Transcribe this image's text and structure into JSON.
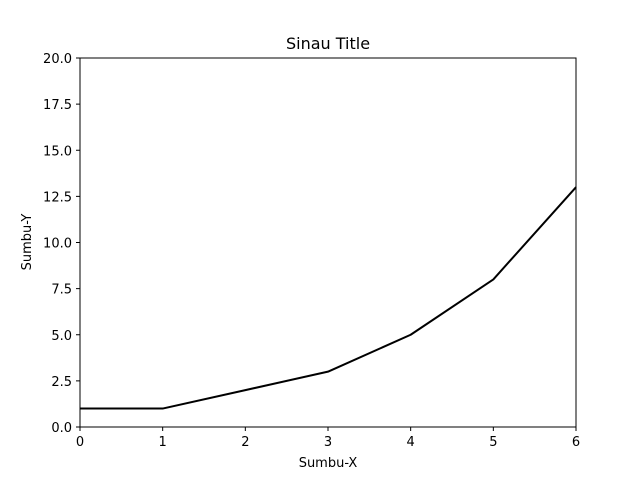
{
  "chart_data": {
    "type": "line",
    "title": "Sinau Title",
    "xlabel": "Sumbu-X",
    "ylabel": "Sumbu-Y",
    "xlim": [
      0,
      6
    ],
    "ylim": [
      0,
      20
    ],
    "x_ticks": [
      "0",
      "1",
      "2",
      "3",
      "4",
      "5",
      "6"
    ],
    "y_ticks": [
      "0.0",
      "2.5",
      "5.0",
      "7.5",
      "10.0",
      "12.5",
      "15.0",
      "17.5",
      "20.0"
    ],
    "grid": false,
    "series": [
      {
        "x": [
          0,
          1,
          2,
          3,
          4,
          5,
          6
        ],
        "y": [
          1,
          1,
          2,
          3,
          5,
          8,
          13
        ],
        "color": "#000000"
      }
    ]
  }
}
